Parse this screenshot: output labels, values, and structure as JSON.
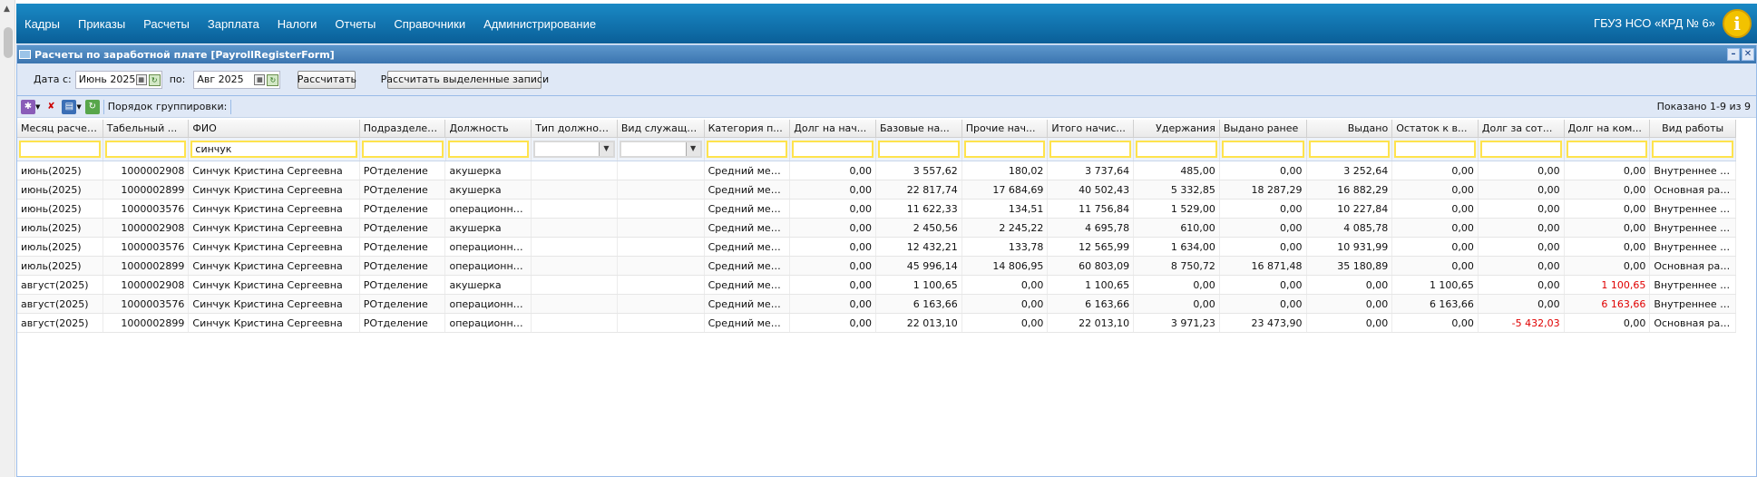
{
  "menu": {
    "items": [
      "Кадры",
      "Приказы",
      "Расчеты",
      "Зарплата",
      "Налоги",
      "Отчеты",
      "Справочники",
      "Администрирование"
    ],
    "org": "ГБУЗ НСО «КРД № 6»",
    "info_icon": "info-icon"
  },
  "window": {
    "title": "Расчеты по заработной плате [PayrollRegisterForm]"
  },
  "filters": {
    "date_from_label": "Дата с:",
    "date_from": "Июнь 2025",
    "date_to_label": "по:",
    "date_to": "Авг 2025",
    "calc_button": "Рассчитать",
    "calc_selected_button": "Рассчитать выделенные записи"
  },
  "toolbar": {
    "grouping_label": "Порядок группировки:",
    "shown": "Показано 1-9 из 9"
  },
  "grid": {
    "columns": [
      "Месяц расчета",
      "Табельный ...",
      "ФИО",
      "Подразделение",
      "Должность",
      "Тип должности",
      "Вид служащего",
      "Категория п...",
      "Долг на нач...",
      "Базовые на...",
      "Прочие нач...",
      "Итого начис...",
      "Удержания",
      "Выдано ранее",
      "Выдано",
      "Остаток к в...",
      "Долг за сот...",
      "Долг на ком...",
      "Вид работы"
    ],
    "filter_fio": "синчук",
    "rows": [
      [
        "июнь(2025)",
        "1000002908",
        "Синчук Кристина Сергеевна",
        "РОтделение",
        "акушерка",
        "",
        "",
        "Средний меди...",
        "0,00",
        "3 557,62",
        "180,02",
        "3 737,64",
        "485,00",
        "0,00",
        "3 252,64",
        "0,00",
        "0,00",
        "0,00",
        "Внутреннее со..."
      ],
      [
        "июнь(2025)",
        "1000002899",
        "Синчук Кристина Сергеевна",
        "РОтделение",
        "акушерка",
        "",
        "",
        "Средний меди...",
        "0,00",
        "22 817,74",
        "17 684,69",
        "40 502,43",
        "5 332,85",
        "18 287,29",
        "16 882,29",
        "0,00",
        "0,00",
        "0,00",
        "Основная рабо..."
      ],
      [
        "июнь(2025)",
        "1000003576",
        "Синчук Кристина Сергеевна",
        "РОтделение",
        "операционная ...",
        "",
        "",
        "Средний меди...",
        "0,00",
        "11 622,33",
        "134,51",
        "11 756,84",
        "1 529,00",
        "0,00",
        "10 227,84",
        "0,00",
        "0,00",
        "0,00",
        "Внутреннее со..."
      ],
      [
        "июль(2025)",
        "1000002908",
        "Синчук Кристина Сергеевна",
        "РОтделение",
        "акушерка",
        "",
        "",
        "Средний меди...",
        "0,00",
        "2 450,56",
        "2 245,22",
        "4 695,78",
        "610,00",
        "0,00",
        "4 085,78",
        "0,00",
        "0,00",
        "0,00",
        "Внутреннее со..."
      ],
      [
        "июль(2025)",
        "1000003576",
        "Синчук Кристина Сергеевна",
        "РОтделение",
        "операционная ...",
        "",
        "",
        "Средний меди...",
        "0,00",
        "12 432,21",
        "133,78",
        "12 565,99",
        "1 634,00",
        "0,00",
        "10 931,99",
        "0,00",
        "0,00",
        "0,00",
        "Внутреннее со..."
      ],
      [
        "июль(2025)",
        "1000002899",
        "Синчук Кристина Сергеевна",
        "РОтделение",
        "операционная ...",
        "",
        "",
        "Средний меди...",
        "0,00",
        "45 996,14",
        "14 806,95",
        "60 803,09",
        "8 750,72",
        "16 871,48",
        "35 180,89",
        "0,00",
        "0,00",
        "0,00",
        "Основная рабо..."
      ],
      [
        "август(2025)",
        "1000002908",
        "Синчук Кристина Сергеевна",
        "РОтделение",
        "акушерка",
        "",
        "",
        "Средний меди...",
        "0,00",
        "1 100,65",
        "0,00",
        "1 100,65",
        "0,00",
        "0,00",
        "0,00",
        "1 100,65",
        "0,00",
        "1 100,65",
        "Внутреннее со..."
      ],
      [
        "август(2025)",
        "1000003576",
        "Синчук Кристина Сергеевна",
        "РОтделение",
        "операционная ...",
        "",
        "",
        "Средний меди...",
        "0,00",
        "6 163,66",
        "0,00",
        "6 163,66",
        "0,00",
        "0,00",
        "0,00",
        "6 163,66",
        "0,00",
        "6 163,66",
        "Внутреннее со..."
      ],
      [
        "август(2025)",
        "1000002899",
        "Синчук Кристина Сергеевна",
        "РОтделение",
        "операционная ...",
        "",
        "",
        "Средний меди...",
        "0,00",
        "22 013,10",
        "0,00",
        "22 013,10",
        "3 971,23",
        "23 473,90",
        "0,00",
        "0,00",
        "-5 432,03",
        "0,00",
        "Основная рабо..."
      ]
    ],
    "red_cells": [
      [
        6,
        17
      ],
      [
        7,
        17
      ],
      [
        8,
        16
      ]
    ],
    "red_color": "#e00000"
  }
}
